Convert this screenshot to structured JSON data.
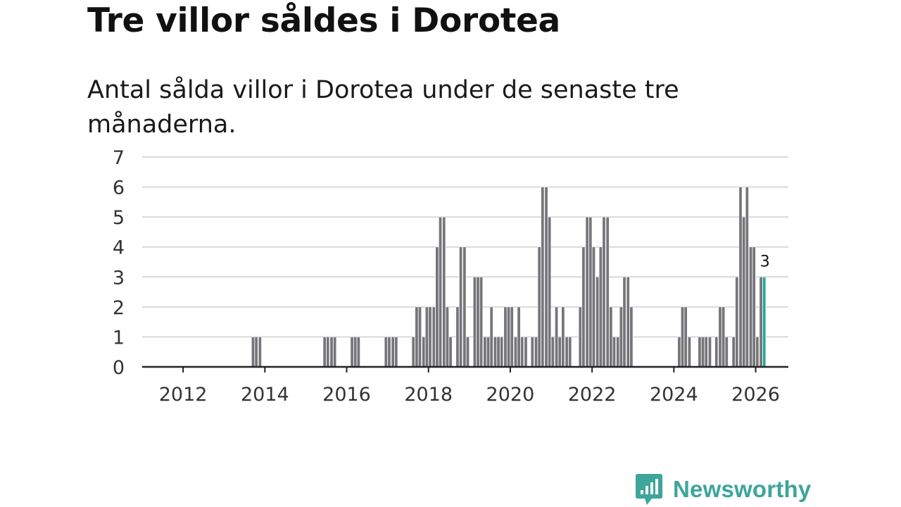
{
  "title": "Tre villor såldes i Dorotea",
  "subtitle": "Antal sålda villor i Dorotea under de senaste tre månaderna.",
  "brand": {
    "name": "Newsworthy",
    "color": "#3da59b",
    "icon": "newsworthy-logo-icon"
  },
  "colors": {
    "bar": "#76767a",
    "highlight": "#22a99b",
    "grid": "#d9d9d9",
    "axis": "#222222",
    "label": "#333333"
  },
  "chart_data": {
    "type": "bar",
    "title": "Tre villor såldes i Dorotea",
    "subtitle": "Antal sålda villor i Dorotea under de senaste tre månaderna.",
    "xlabel": "",
    "ylabel": "",
    "ylim": [
      0,
      7
    ],
    "xlim": [
      2011,
      2026.8
    ],
    "y_ticks": [
      "0",
      "1",
      "2",
      "3",
      "4",
      "5",
      "6",
      "7"
    ],
    "x_ticks": [
      {
        "value": 2012,
        "label": "2012"
      },
      {
        "value": 2014,
        "label": "2014"
      },
      {
        "value": 2016,
        "label": "2016"
      },
      {
        "value": 2018,
        "label": "2018"
      },
      {
        "value": 2020,
        "label": "2020"
      },
      {
        "value": 2022,
        "label": "2022"
      },
      {
        "value": 2024,
        "label": "2024"
      },
      {
        "value": 2026,
        "label": "2026"
      }
    ],
    "grid": true,
    "bar_width_years": 0.075,
    "series": [
      {
        "name": "Antal sålda villor",
        "points": [
          {
            "x": 2013.71,
            "y": 1
          },
          {
            "x": 2013.79,
            "y": 1
          },
          {
            "x": 2013.88,
            "y": 1
          },
          {
            "x": 2015.46,
            "y": 1
          },
          {
            "x": 2015.54,
            "y": 1
          },
          {
            "x": 2015.63,
            "y": 1
          },
          {
            "x": 2015.71,
            "y": 1
          },
          {
            "x": 2016.13,
            "y": 1
          },
          {
            "x": 2016.21,
            "y": 1
          },
          {
            "x": 2016.29,
            "y": 1
          },
          {
            "x": 2016.96,
            "y": 1
          },
          {
            "x": 2017.04,
            "y": 1
          },
          {
            "x": 2017.13,
            "y": 1
          },
          {
            "x": 2017.21,
            "y": 1
          },
          {
            "x": 2017.63,
            "y": 1
          },
          {
            "x": 2017.71,
            "y": 2
          },
          {
            "x": 2017.79,
            "y": 2
          },
          {
            "x": 2017.88,
            "y": 1
          },
          {
            "x": 2017.96,
            "y": 2
          },
          {
            "x": 2018.04,
            "y": 2
          },
          {
            "x": 2018.13,
            "y": 2
          },
          {
            "x": 2018.21,
            "y": 4
          },
          {
            "x": 2018.29,
            "y": 5
          },
          {
            "x": 2018.38,
            "y": 5
          },
          {
            "x": 2018.46,
            "y": 2
          },
          {
            "x": 2018.54,
            "y": 1
          },
          {
            "x": 2018.71,
            "y": 2
          },
          {
            "x": 2018.79,
            "y": 4
          },
          {
            "x": 2018.88,
            "y": 4
          },
          {
            "x": 2018.96,
            "y": 1
          },
          {
            "x": 2019.13,
            "y": 3
          },
          {
            "x": 2019.21,
            "y": 3
          },
          {
            "x": 2019.29,
            "y": 3
          },
          {
            "x": 2019.38,
            "y": 1
          },
          {
            "x": 2019.46,
            "y": 1
          },
          {
            "x": 2019.54,
            "y": 2
          },
          {
            "x": 2019.63,
            "y": 1
          },
          {
            "x": 2019.71,
            "y": 1
          },
          {
            "x": 2019.79,
            "y": 1
          },
          {
            "x": 2019.88,
            "y": 2
          },
          {
            "x": 2019.96,
            "y": 2
          },
          {
            "x": 2020.04,
            "y": 2
          },
          {
            "x": 2020.13,
            "y": 1
          },
          {
            "x": 2020.21,
            "y": 2
          },
          {
            "x": 2020.29,
            "y": 1
          },
          {
            "x": 2020.38,
            "y": 1
          },
          {
            "x": 2020.54,
            "y": 1
          },
          {
            "x": 2020.63,
            "y": 1
          },
          {
            "x": 2020.71,
            "y": 4
          },
          {
            "x": 2020.79,
            "y": 6
          },
          {
            "x": 2020.88,
            "y": 6
          },
          {
            "x": 2020.96,
            "y": 5
          },
          {
            "x": 2021.04,
            "y": 1
          },
          {
            "x": 2021.13,
            "y": 2
          },
          {
            "x": 2021.21,
            "y": 1
          },
          {
            "x": 2021.29,
            "y": 2
          },
          {
            "x": 2021.38,
            "y": 1
          },
          {
            "x": 2021.46,
            "y": 1
          },
          {
            "x": 2021.71,
            "y": 2
          },
          {
            "x": 2021.79,
            "y": 4
          },
          {
            "x": 2021.88,
            "y": 5
          },
          {
            "x": 2021.96,
            "y": 5
          },
          {
            "x": 2022.04,
            "y": 4
          },
          {
            "x": 2022.13,
            "y": 3
          },
          {
            "x": 2022.21,
            "y": 4
          },
          {
            "x": 2022.29,
            "y": 5
          },
          {
            "x": 2022.38,
            "y": 5
          },
          {
            "x": 2022.46,
            "y": 2
          },
          {
            "x": 2022.54,
            "y": 1
          },
          {
            "x": 2022.63,
            "y": 1
          },
          {
            "x": 2022.71,
            "y": 2
          },
          {
            "x": 2022.79,
            "y": 3
          },
          {
            "x": 2022.88,
            "y": 3
          },
          {
            "x": 2022.96,
            "y": 2
          },
          {
            "x": 2024.13,
            "y": 1
          },
          {
            "x": 2024.21,
            "y": 2
          },
          {
            "x": 2024.29,
            "y": 2
          },
          {
            "x": 2024.38,
            "y": 1
          },
          {
            "x": 2024.63,
            "y": 1
          },
          {
            "x": 2024.71,
            "y": 1
          },
          {
            "x": 2024.79,
            "y": 1
          },
          {
            "x": 2024.88,
            "y": 1
          },
          {
            "x": 2025.04,
            "y": 1
          },
          {
            "x": 2025.13,
            "y": 2
          },
          {
            "x": 2025.21,
            "y": 2
          },
          {
            "x": 2025.29,
            "y": 1
          },
          {
            "x": 2025.46,
            "y": 1
          },
          {
            "x": 2025.54,
            "y": 3
          },
          {
            "x": 2025.63,
            "y": 6
          },
          {
            "x": 2025.71,
            "y": 5
          },
          {
            "x": 2025.79,
            "y": 6
          },
          {
            "x": 2025.88,
            "y": 4
          },
          {
            "x": 2025.96,
            "y": 4
          },
          {
            "x": 2026.04,
            "y": 1
          },
          {
            "x": 2026.13,
            "y": 3
          },
          {
            "x": 2026.21,
            "y": 3,
            "highlight": true
          }
        ]
      }
    ],
    "annotations": [
      {
        "x": 2026.21,
        "y": 3,
        "text": "3"
      }
    ]
  }
}
